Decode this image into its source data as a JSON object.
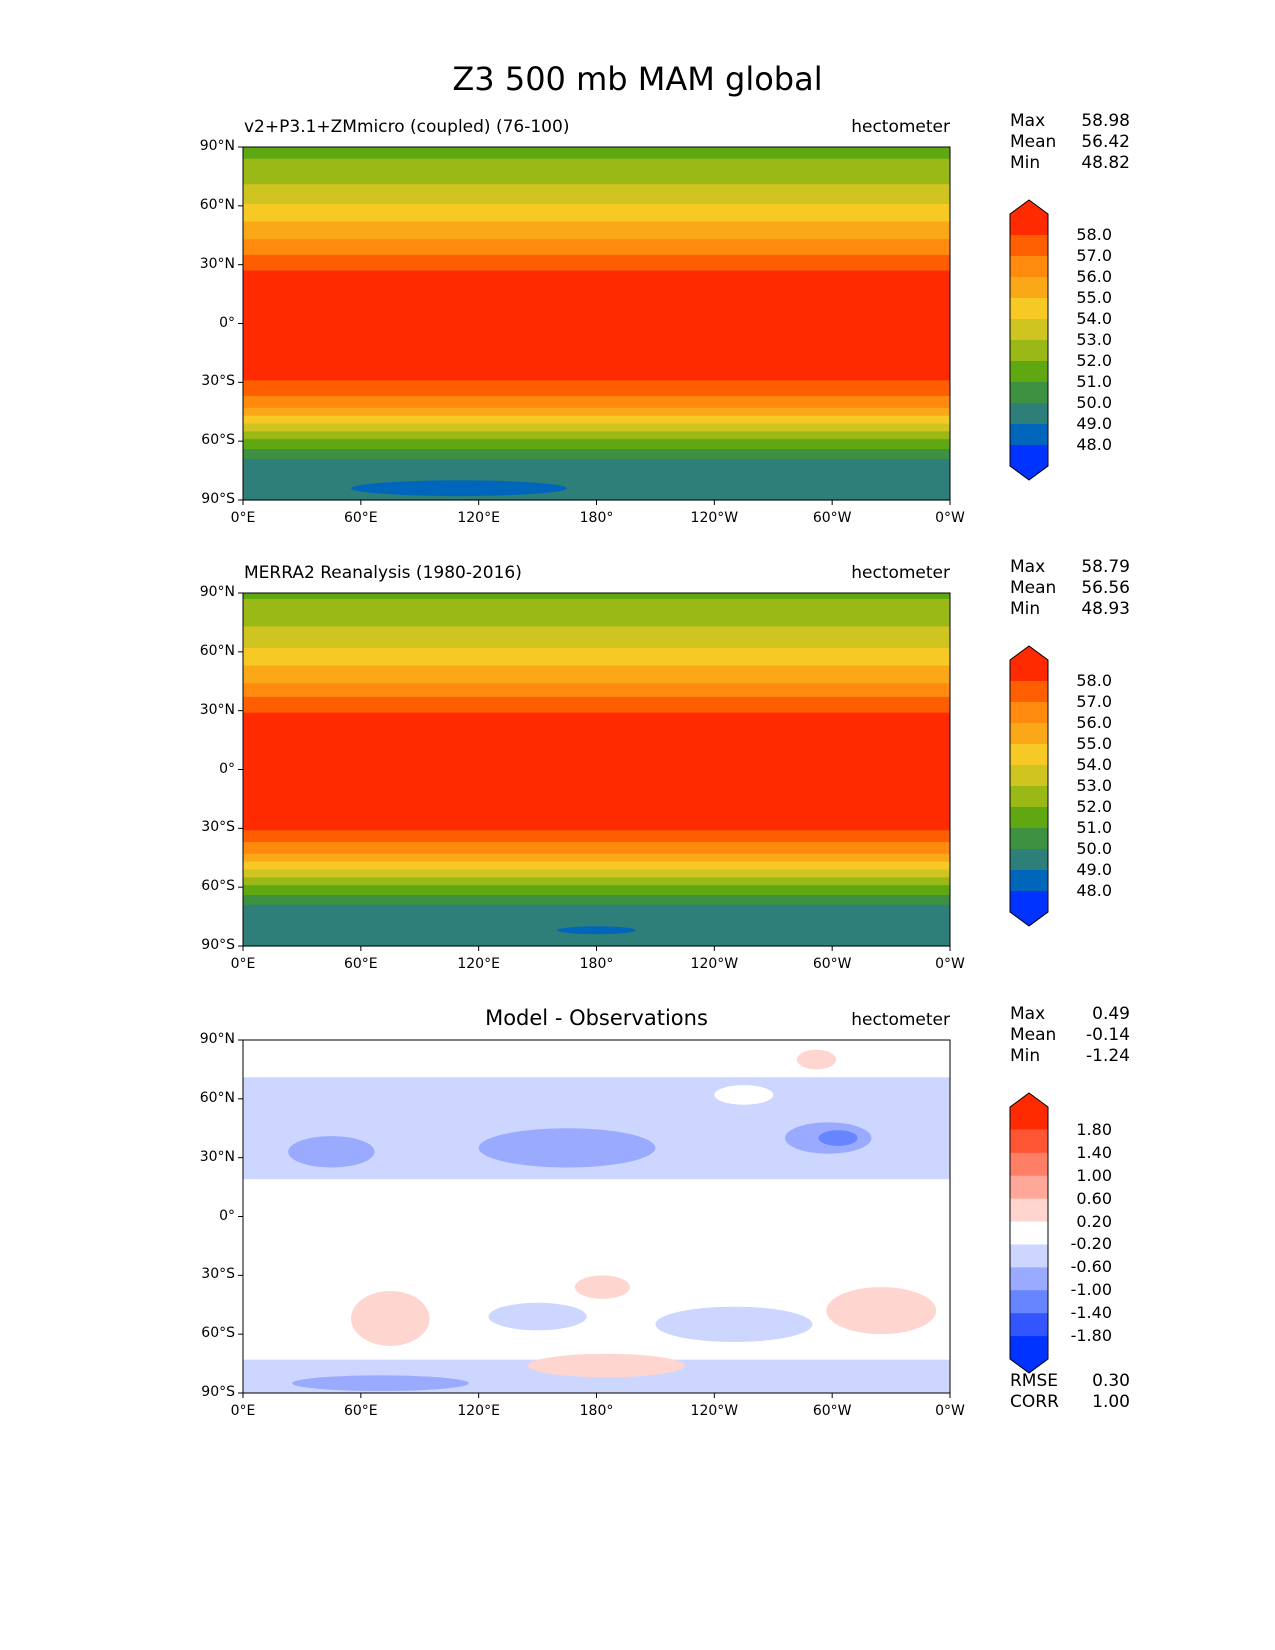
{
  "title": "Z3 500 mb MAM global",
  "x_ticks": [
    "0°E",
    "60°E",
    "120°E",
    "180°",
    "120°W",
    "60°W",
    "0°W"
  ],
  "y_ticks": [
    "90°N",
    "60°N",
    "30°N",
    "0°",
    "30°S",
    "60°S",
    "90°S"
  ],
  "chart_data": [
    {
      "type": "heatmap",
      "title": "v2+P3.1+ZMmicro (coupled) (76-100)",
      "units": "hectometer",
      "stats": {
        "labels": [
          "Max",
          "Mean",
          "Min"
        ],
        "values": [
          "58.98",
          "56.42",
          "48.82"
        ]
      },
      "colorbar": {
        "levels": [
          "58.0",
          "57.0",
          "56.0",
          "55.0",
          "54.0",
          "53.0",
          "52.0",
          "51.0",
          "50.0",
          "49.0",
          "48.0"
        ],
        "colors": [
          "#ff2a00",
          "#ff5f00",
          "#ff8a0e",
          "#fba818",
          "#f7c925",
          "#cfc420",
          "#9ab816",
          "#5fa812",
          "#3d9140",
          "#2e7f7a",
          "#0066bb",
          "#0033ff"
        ]
      },
      "zonal_profile": [
        [
          90,
          51.6
        ],
        [
          78,
          52.4
        ],
        [
          68,
          53.3
        ],
        [
          58,
          54.3
        ],
        [
          48,
          55.4
        ],
        [
          40,
          56.4
        ],
        [
          33,
          57.3
        ],
        [
          26,
          58.1
        ],
        [
          0,
          58.6
        ],
        [
          -28,
          58.1
        ],
        [
          -34,
          57.4
        ],
        [
          -40,
          56.5
        ],
        [
          -45,
          55.5
        ],
        [
          -49,
          54.5
        ],
        [
          -53,
          53.5
        ],
        [
          -57,
          52.5
        ],
        [
          -61,
          51.5
        ],
        [
          -66,
          50.5
        ],
        [
          -70,
          49.7
        ],
        [
          -90,
          49.3
        ]
      ],
      "features": [
        {
          "lon": 110,
          "lat": -84,
          "dlon": 55,
          "dlat": 4,
          "value": 48.5
        }
      ]
    },
    {
      "type": "heatmap",
      "title": "MERRA2 Reanalysis (1980-2016)",
      "units": "hectometer",
      "stats": {
        "labels": [
          "Max",
          "Mean",
          "Min"
        ],
        "values": [
          "58.79",
          "56.56",
          "48.93"
        ]
      },
      "colorbar": {
        "levels": [
          "58.0",
          "57.0",
          "56.0",
          "55.0",
          "54.0",
          "53.0",
          "52.0",
          "51.0",
          "50.0",
          "49.0",
          "48.0"
        ],
        "colors": [
          "#ff2a00",
          "#ff5f00",
          "#ff8a0e",
          "#fba818",
          "#f7c925",
          "#cfc420",
          "#9ab816",
          "#5fa812",
          "#3d9140",
          "#2e7f7a",
          "#0066bb",
          "#0033ff"
        ]
      },
      "zonal_profile": [
        [
          90,
          51.8
        ],
        [
          78,
          52.6
        ],
        [
          68,
          53.4
        ],
        [
          58,
          54.4
        ],
        [
          48,
          55.5
        ],
        [
          40,
          56.5
        ],
        [
          34,
          57.4
        ],
        [
          28,
          58.1
        ],
        [
          0,
          58.6
        ],
        [
          -30,
          58.1
        ],
        [
          -35,
          57.4
        ],
        [
          -40,
          56.5
        ],
        [
          -45,
          55.5
        ],
        [
          -49,
          54.5
        ],
        [
          -53,
          53.5
        ],
        [
          -57,
          52.5
        ],
        [
          -61,
          51.5
        ],
        [
          -66,
          50.5
        ],
        [
          -70,
          49.7
        ],
        [
          -90,
          49.4
        ]
      ],
      "features": [
        {
          "lon": 180,
          "lat": -82,
          "dlon": 20,
          "dlat": 2,
          "value": 48.5
        }
      ]
    },
    {
      "type": "heatmap",
      "title": "Model - Observations",
      "units": "hectometer",
      "stats": {
        "labels": [
          "Max",
          "Mean",
          "Min"
        ],
        "values": [
          "0.49",
          "-0.14",
          "-1.24"
        ]
      },
      "extra_stats": {
        "labels": [
          "RMSE",
          "CORR"
        ],
        "values": [
          "0.30",
          "1.00"
        ]
      },
      "colorbar": {
        "levels": [
          "1.80",
          "1.40",
          "1.00",
          "0.60",
          "0.20",
          "-0.20",
          "-0.60",
          "-1.00",
          "-1.40",
          "-1.80"
        ],
        "colors": [
          "#ff2a00",
          "#ff5533",
          "#ff7f66",
          "#ffa899",
          "#ffd5cf",
          "#ffffff",
          "#ccd6ff",
          "#99aaff",
          "#6685ff",
          "#3355ff",
          "#0033ff"
        ]
      },
      "zonal_profile": [
        [
          90,
          0
        ],
        [
          72,
          0
        ],
        [
          70,
          -0.3
        ],
        [
          20,
          -0.3
        ],
        [
          18,
          0
        ],
        [
          -72,
          0
        ],
        [
          -74,
          -0.3
        ],
        [
          -90,
          -0.3
        ]
      ],
      "features": [
        {
          "lon": 45,
          "lat": 33,
          "dlon": 22,
          "dlat": 8,
          "value": -0.7
        },
        {
          "lon": 165,
          "lat": 35,
          "dlon": 45,
          "dlat": 10,
          "value": -0.7
        },
        {
          "lon": 298,
          "lat": 40,
          "dlon": 22,
          "dlat": 8,
          "value": -0.7
        },
        {
          "lon": 303,
          "lat": 40,
          "dlon": 10,
          "dlat": 4,
          "value": -1.1
        },
        {
          "lon": 75,
          "lat": -52,
          "dlon": 20,
          "dlat": 14,
          "value": 0.3
        },
        {
          "lon": 183,
          "lat": -36,
          "dlon": 14,
          "dlat": 6,
          "value": 0.3
        },
        {
          "lon": 325,
          "lat": -48,
          "dlon": 28,
          "dlat": 12,
          "value": 0.3
        },
        {
          "lon": 150,
          "lat": -51,
          "dlon": 25,
          "dlat": 7,
          "value": -0.3
        },
        {
          "lon": 250,
          "lat": -55,
          "dlon": 40,
          "dlat": 9,
          "value": -0.3
        },
        {
          "lon": 185,
          "lat": -76,
          "dlon": 40,
          "dlat": 6,
          "value": 0.3
        },
        {
          "lon": 70,
          "lat": -85,
          "dlon": 45,
          "dlat": 4,
          "value": -0.7
        },
        {
          "lon": 292,
          "lat": 80,
          "dlon": 10,
          "dlat": 5,
          "value": 0.3
        },
        {
          "lon": 255,
          "lat": 62,
          "dlon": 15,
          "dlat": 5,
          "value": 0
        }
      ]
    }
  ]
}
